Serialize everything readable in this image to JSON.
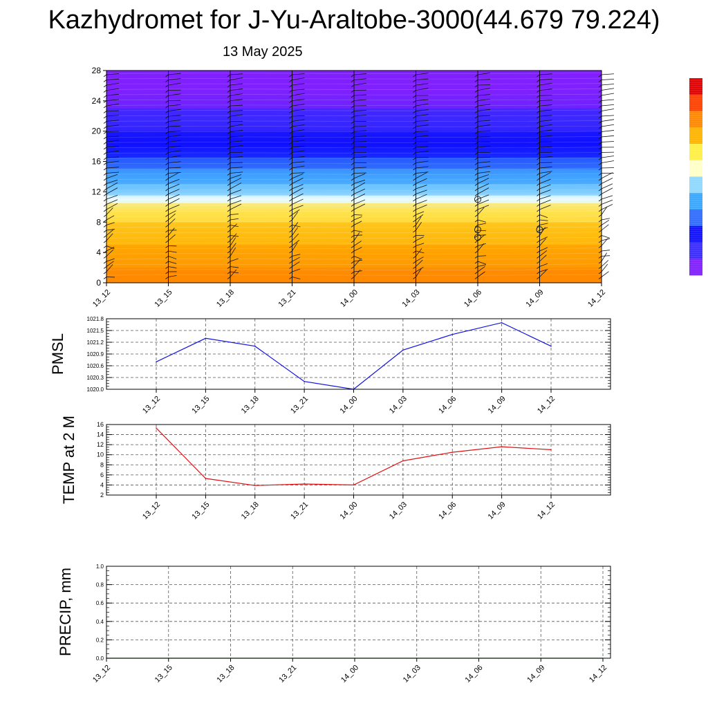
{
  "title": "Kazhydromet for J-Yu-Araltobe-3000(44.679 79.224)",
  "subtitle": "13 May 2025",
  "colors": {
    "pmsl_line": "#1010e0",
    "temp_line": "#e01010",
    "precip_line": "#1a6b1a",
    "grid": "#555555"
  },
  "chart_data": [
    {
      "type": "heatmap",
      "name": "time-height cross-section with wind barbs",
      "categories": [
        "13_12",
        "13_15",
        "13_18",
        "13_21",
        "14_00",
        "14_03",
        "14_06",
        "14_09",
        "14_12"
      ],
      "ylim": [
        0,
        28
      ],
      "yticks": [
        0,
        4,
        8,
        12,
        16,
        20,
        24,
        28
      ],
      "ylabel": "",
      "colorbar_colors": [
        "#7f1fff",
        "#3a2bff",
        "#1010ff",
        "#2f6cff",
        "#39a6ff",
        "#8fd8ff",
        "#ffffc8",
        "#ffee44",
        "#ffb400",
        "#ff8800",
        "#ff4000",
        "#e00000"
      ],
      "color_bands": [
        {
          "from": 0,
          "to": 2,
          "color": "#ff8a00"
        },
        {
          "from": 2,
          "to": 5,
          "color": "#ffa000"
        },
        {
          "from": 5,
          "to": 8,
          "color": "#ffbe10"
        },
        {
          "from": 8,
          "to": 10.5,
          "color": "#ffe24a"
        },
        {
          "from": 10.5,
          "to": 11.5,
          "color": "#e8fbff"
        },
        {
          "from": 11.5,
          "to": 13,
          "color": "#74c8ff"
        },
        {
          "from": 13,
          "to": 15,
          "color": "#3fa2ff"
        },
        {
          "from": 15,
          "to": 16.5,
          "color": "#2a62ff"
        },
        {
          "from": 16.5,
          "to": 20,
          "color": "#1010ff"
        },
        {
          "from": 20,
          "to": 23,
          "color": "#3a28ff"
        },
        {
          "from": 23,
          "to": 28,
          "color": "#8020ff"
        }
      ],
      "calm_markers": [
        {
          "x": "14_06",
          "y": 11
        },
        {
          "x": "14_06",
          "y": 7
        },
        {
          "x": "14_06",
          "y": 6
        },
        {
          "x": "14_09",
          "y": 7
        }
      ]
    },
    {
      "type": "line",
      "name": "PMSL",
      "ylabel": "PMSL",
      "categories": [
        "13_12",
        "13_15",
        "13_18",
        "13_21",
        "14_00",
        "14_03",
        "14_06",
        "14_09",
        "14_12"
      ],
      "values": [
        1020.7,
        1021.3,
        1021.1,
        1020.2,
        1020.0,
        1021.0,
        1021.4,
        1021.7,
        1021.1
      ],
      "ylim": [
        1020.0,
        1021.8
      ],
      "yticks": [
        "1020.0",
        "1020.3",
        "1020.6",
        "1020.9",
        "1021.2",
        "1021.5",
        "1021.8"
      ],
      "grid": true
    },
    {
      "type": "line",
      "name": "TEMP at 2 M",
      "ylabel": "TEMP at 2 M",
      "categories": [
        "13_12",
        "13_15",
        "13_18",
        "13_21",
        "14_00",
        "14_03",
        "14_06",
        "14_09",
        "14_12"
      ],
      "values": [
        15.3,
        5.3,
        3.9,
        4.2,
        4.0,
        8.8,
        10.5,
        11.6,
        11.0
      ],
      "ylim": [
        2,
        16
      ],
      "yticks": [
        "2",
        "4",
        "6",
        "8",
        "10",
        "12",
        "14",
        "16"
      ],
      "grid": true
    },
    {
      "type": "line",
      "name": "PRECIP, mm",
      "ylabel": "PRECIP, mm",
      "categories": [
        "13_12",
        "13_15",
        "13_18",
        "13_21",
        "14_00",
        "14_03",
        "14_06",
        "14_09",
        "14_12"
      ],
      "values": [
        0,
        0,
        0,
        0,
        0,
        0,
        0,
        0,
        0
      ],
      "ylim": [
        0,
        1
      ],
      "yticks": [
        "0.0",
        "0.2",
        "0.4",
        "0.6",
        "0.8",
        "1.0"
      ],
      "grid": true
    }
  ]
}
